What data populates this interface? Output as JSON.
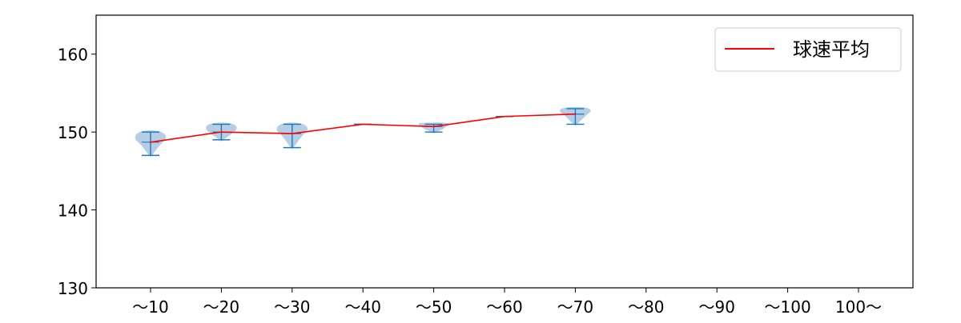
{
  "chart_data": {
    "type": "violin",
    "categories": [
      "～10",
      "～20",
      "～30",
      "～40",
      "～50",
      "～60",
      "～70",
      "～80",
      "～90",
      "～100",
      "100～"
    ],
    "y_ticks": [
      130,
      140,
      150,
      160
    ],
    "ylim": [
      130,
      165
    ],
    "legend": {
      "label": "球速平均",
      "placement": "top-right"
    },
    "series": [
      {
        "name": "球速平均",
        "color": "#ff0000",
        "values": [
          148.7,
          150.0,
          149.8,
          151.0,
          150.7,
          152.0,
          152.3,
          null,
          null,
          null,
          null
        ]
      }
    ],
    "distribution": [
      {
        "category": "～10",
        "min": 147,
        "max": 150,
        "mean": 148.7
      },
      {
        "category": "～20",
        "min": 149,
        "max": 151,
        "mean": 150.0
      },
      {
        "category": "～30",
        "min": 148,
        "max": 151,
        "mean": 149.8
      },
      {
        "category": "～40",
        "min": 151,
        "max": 151,
        "mean": 151.0
      },
      {
        "category": "～50",
        "min": 150,
        "max": 151,
        "mean": 150.7
      },
      {
        "category": "～60",
        "min": 152,
        "max": 152,
        "mean": 152.0
      },
      {
        "category": "～70",
        "min": 151,
        "max": 153,
        "mean": 152.3
      }
    ],
    "colors": {
      "violin": "#a7c5e0",
      "errorbar": "#1f77b4",
      "mean_line": "#ff0000"
    }
  }
}
